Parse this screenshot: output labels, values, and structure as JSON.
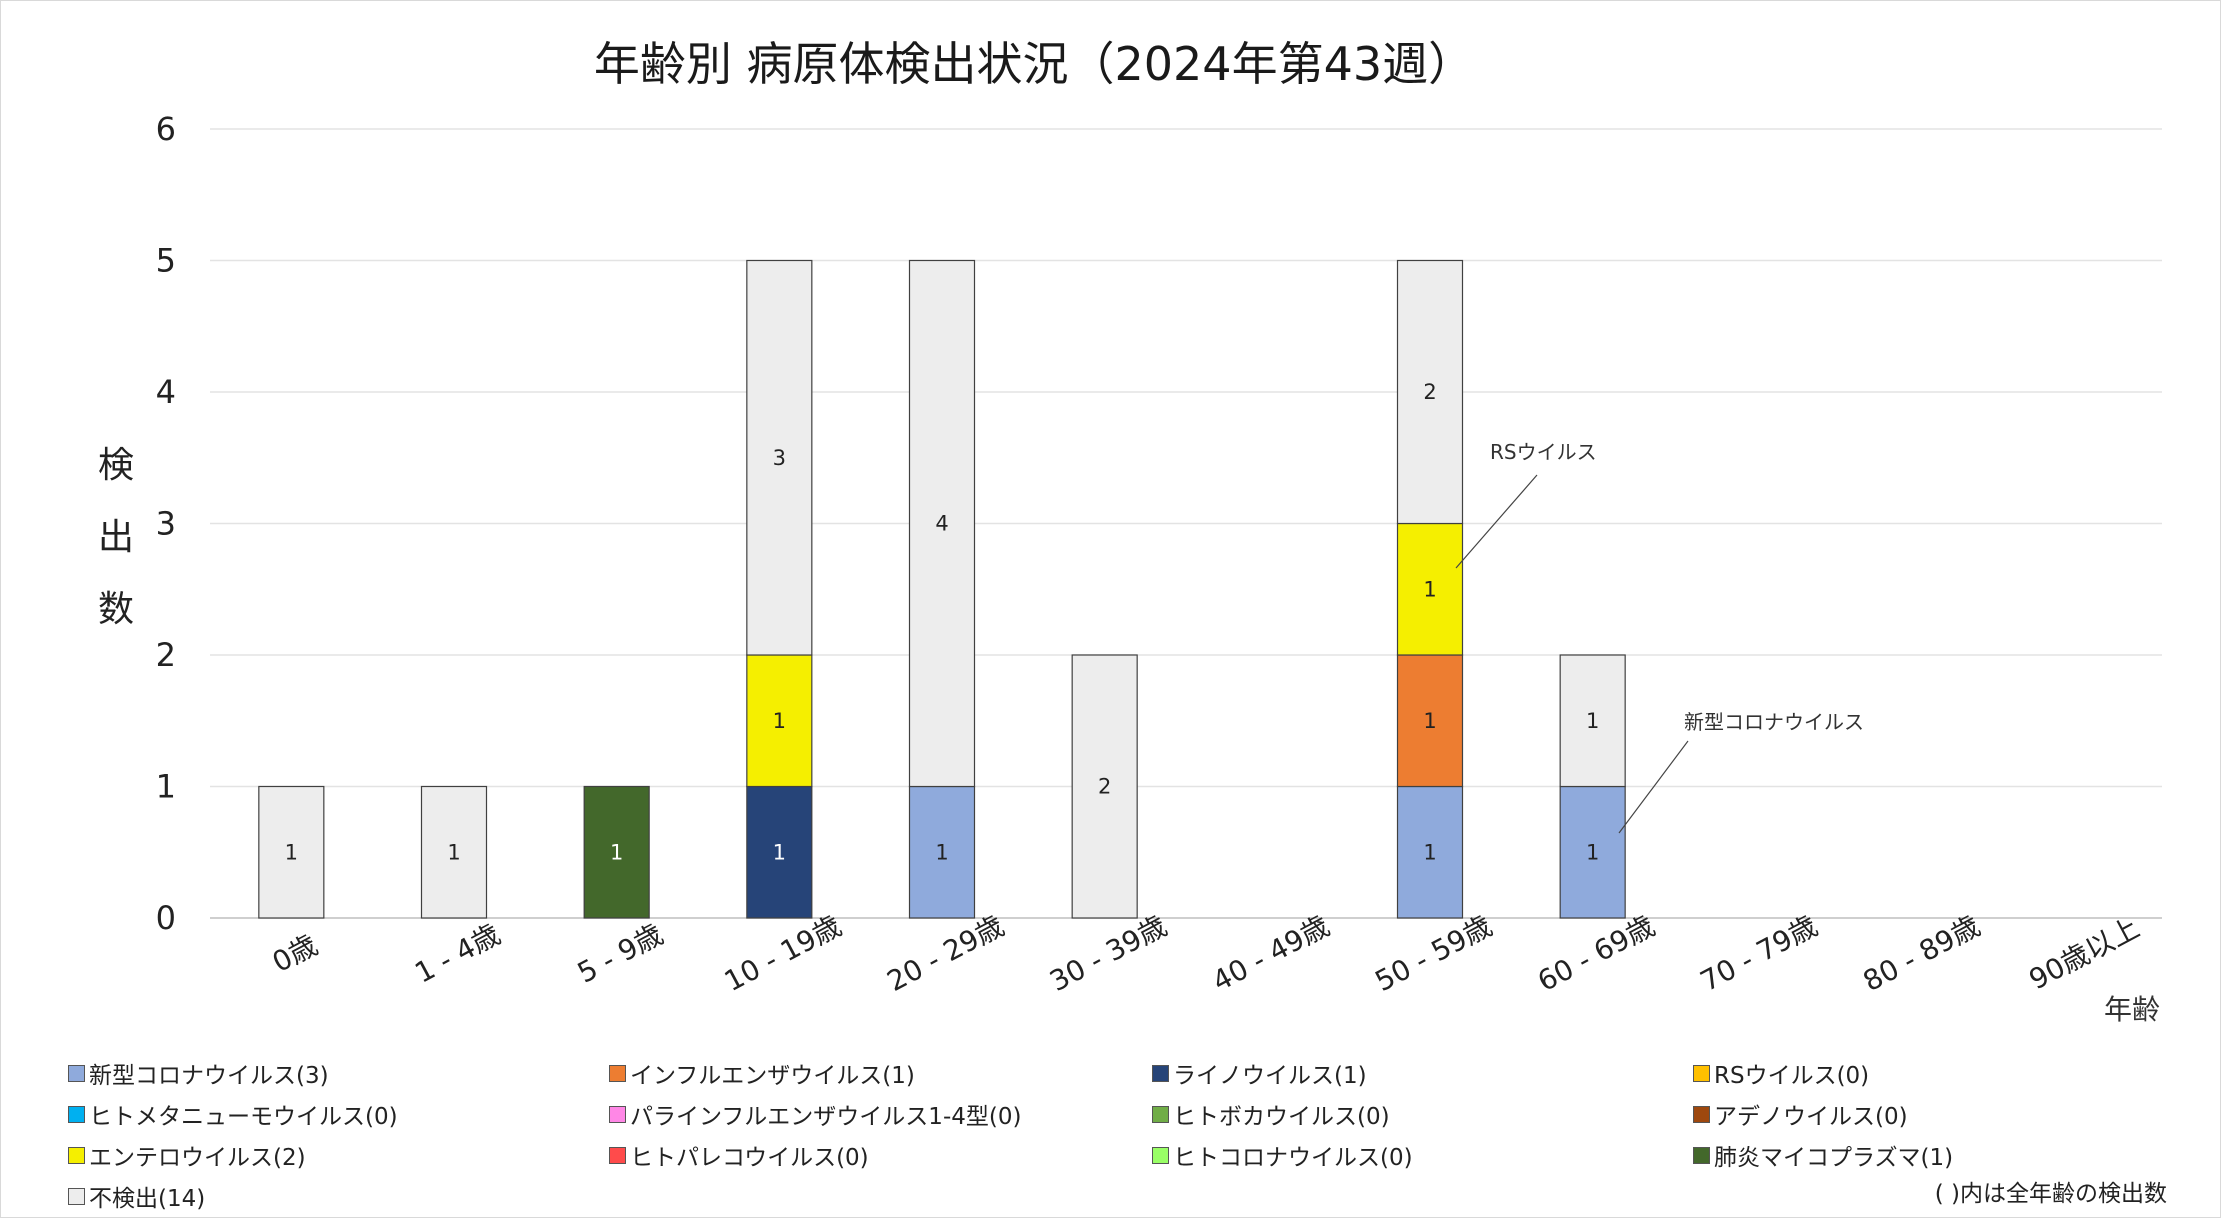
{
  "chart_data": {
    "type": "bar",
    "stacked": true,
    "title": "年齢別 病原体検出状況（2024年第43週）",
    "xlabel": "年齢",
    "ylabel": "検出数",
    "ylim": [
      0,
      6
    ],
    "yticks": [
      "0",
      "1",
      "2",
      "3",
      "4",
      "5",
      "6"
    ],
    "grid": true,
    "categories": [
      "0歳",
      "1 - 4歳",
      "5 - 9歳",
      "10 - 19歳",
      "20 - 29歳",
      "30 - 39歳",
      "40 - 49歳",
      "50 - 59歳",
      "60 - 69歳",
      "70 - 79歳",
      "80 - 89歳",
      "90歳以上"
    ],
    "series": [
      {
        "name": "新型コロナウイルス",
        "legend": "新型コロナウイルス(3)",
        "color": "#8faadc",
        "values": [
          0,
          0,
          0,
          0,
          1,
          0,
          0,
          1,
          1,
          0,
          0,
          0
        ]
      },
      {
        "name": "インフルエンザウイルス",
        "legend": "インフルエンザウイルス(1)",
        "color": "#ed7d31",
        "values": [
          0,
          0,
          0,
          0,
          0,
          0,
          0,
          1,
          0,
          0,
          0,
          0
        ]
      },
      {
        "name": "ライノウイルス",
        "legend": "ライノウイルス(1)",
        "color": "#264478",
        "values": [
          0,
          0,
          0,
          1,
          0,
          0,
          0,
          0,
          0,
          0,
          0,
          0
        ]
      },
      {
        "name": "RSウイルス",
        "legend": "RSウイルス(0)",
        "color": "#ffc000",
        "values": [
          0,
          0,
          0,
          0,
          0,
          0,
          0,
          0,
          0,
          0,
          0,
          0
        ]
      },
      {
        "name": "ヒトメタニューモウイルス",
        "legend": "ヒトメタニューモウイルス(0)",
        "color": "#00b0f0",
        "values": [
          0,
          0,
          0,
          0,
          0,
          0,
          0,
          0,
          0,
          0,
          0,
          0
        ]
      },
      {
        "name": "パラインフルエンザウイルス1-4型",
        "legend": "パラインフルエンザウイルス1-4型(0)",
        "color": "#ff87e6",
        "values": [
          0,
          0,
          0,
          0,
          0,
          0,
          0,
          0,
          0,
          0,
          0,
          0
        ]
      },
      {
        "name": "ヒトボカウイルス",
        "legend": "ヒトボカウイルス(0)",
        "color": "#70ad47",
        "values": [
          0,
          0,
          0,
          0,
          0,
          0,
          0,
          0,
          0,
          0,
          0,
          0
        ]
      },
      {
        "name": "アデノウイルス",
        "legend": "アデノウイルス(0)",
        "color": "#9e480e",
        "values": [
          0,
          0,
          0,
          0,
          0,
          0,
          0,
          0,
          0,
          0,
          0,
          0
        ]
      },
      {
        "name": "エンテロウイルス",
        "legend": "エンテロウイルス(2)",
        "color": "#f5ef00",
        "values": [
          0,
          0,
          0,
          1,
          0,
          0,
          0,
          1,
          0,
          0,
          0,
          0
        ]
      },
      {
        "name": "ヒトパレコウイルス",
        "legend": "ヒトパレコウイルス(0)",
        "color": "#ff4b4b",
        "values": [
          0,
          0,
          0,
          0,
          0,
          0,
          0,
          0,
          0,
          0,
          0,
          0
        ]
      },
      {
        "name": "ヒトコロナウイルス",
        "legend": "ヒトコロナウイルス(0)",
        "color": "#99ff66",
        "values": [
          0,
          0,
          0,
          0,
          0,
          0,
          0,
          0,
          0,
          0,
          0,
          0
        ]
      },
      {
        "name": "肺炎マイコプラズマ",
        "legend": "肺炎マイコプラズマ(1)",
        "color": "#43682b",
        "values": [
          0,
          0,
          1,
          0,
          0,
          0,
          0,
          0,
          0,
          0,
          0,
          0
        ]
      },
      {
        "name": "不検出",
        "legend": "不検出(14)",
        "color": "#ededed",
        "values": [
          1,
          1,
          0,
          3,
          4,
          2,
          0,
          2,
          1,
          0,
          0,
          0
        ]
      }
    ],
    "legend_position": "bottom",
    "annotations": [
      {
        "text": "RSウイルス",
        "category": "50 - 59歳"
      },
      {
        "text": "新型コロナウイルス",
        "category": "60 - 69歳"
      }
    ],
    "note": "( )内は全年齢の検出数"
  }
}
